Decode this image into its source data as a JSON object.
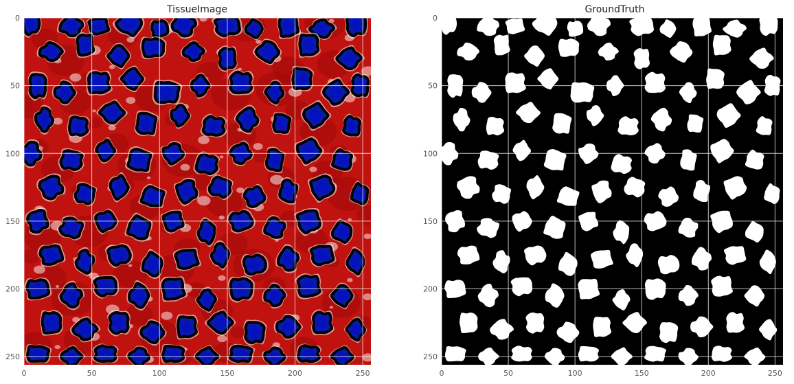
{
  "panels": [
    {
      "id": "tissue",
      "title": "TissueImage",
      "xticks": [
        "0",
        "50",
        "100",
        "150",
        "200",
        "250"
      ],
      "yticks": [
        "0",
        "50",
        "100",
        "150",
        "200",
        "250"
      ],
      "colors": {
        "background": "#c0120e",
        "background_dark": "#9e0a0a",
        "nucleus_fill": "#0a1aa8",
        "nucleus_core": "#0010c8",
        "outline": "#000000",
        "halo": "#ffffff",
        "grid": "#ffffff"
      }
    },
    {
      "id": "truth",
      "title": "GroundTruth",
      "xticks": [
        "0",
        "50",
        "100",
        "150",
        "200",
        "250"
      ],
      "yticks": [
        "0",
        "50",
        "100",
        "150",
        "200",
        "250"
      ],
      "colors": {
        "background": "#000000",
        "nucleus_fill": "#ffffff",
        "grid": "#ffffff"
      }
    }
  ],
  "image": {
    "width": 256,
    "height": 256,
    "tick_values": [
      0,
      50,
      100,
      150,
      200,
      250
    ]
  },
  "nuclei": [
    [
      5,
      4,
      6,
      8
    ],
    [
      35,
      6,
      8,
      7
    ],
    [
      55,
      6,
      7,
      6
    ],
    [
      78,
      4,
      9,
      8
    ],
    [
      100,
      8,
      6,
      6
    ],
    [
      118,
      5,
      8,
      8
    ],
    [
      150,
      6,
      9,
      7
    ],
    [
      170,
      8,
      6,
      6
    ],
    [
      195,
      6,
      7,
      8
    ],
    [
      220,
      8,
      8,
      6
    ],
    [
      245,
      5,
      7,
      8
    ],
    [
      20,
      25,
      8,
      6
    ],
    [
      45,
      20,
      6,
      8
    ],
    [
      70,
      28,
      7,
      7
    ],
    [
      95,
      22,
      8,
      7
    ],
    [
      125,
      25,
      7,
      6
    ],
    [
      150,
      30,
      6,
      8
    ],
    [
      180,
      25,
      8,
      7
    ],
    [
      210,
      20,
      7,
      8
    ],
    [
      240,
      30,
      8,
      7
    ],
    [
      10,
      50,
      6,
      9
    ],
    [
      30,
      55,
      7,
      7
    ],
    [
      55,
      48,
      8,
      8
    ],
    [
      80,
      45,
      7,
      7
    ],
    [
      105,
      55,
      9,
      8
    ],
    [
      130,
      50,
      6,
      7
    ],
    [
      160,
      48,
      8,
      8
    ],
    [
      185,
      55,
      6,
      7
    ],
    [
      205,
      45,
      7,
      8
    ],
    [
      230,
      55,
      8,
      8
    ],
    [
      248,
      50,
      6,
      8
    ],
    [
      15,
      75,
      6,
      8
    ],
    [
      40,
      80,
      7,
      7
    ],
    [
      65,
      70,
      8,
      7
    ],
    [
      90,
      78,
      7,
      8
    ],
    [
      115,
      72,
      6,
      7
    ],
    [
      140,
      80,
      8,
      7
    ],
    [
      165,
      75,
      7,
      8
    ],
    [
      190,
      78,
      6,
      7
    ],
    [
      215,
      72,
      8,
      8
    ],
    [
      242,
      80,
      6,
      7
    ],
    [
      5,
      100,
      7,
      8
    ],
    [
      35,
      105,
      8,
      7
    ],
    [
      60,
      98,
      6,
      7
    ],
    [
      85,
      105,
      8,
      8
    ],
    [
      110,
      100,
      7,
      7
    ],
    [
      135,
      108,
      8,
      7
    ],
    [
      160,
      100,
      7,
      7
    ],
    [
      185,
      105,
      6,
      8
    ],
    [
      210,
      98,
      8,
      8
    ],
    [
      235,
      105,
      7,
      7
    ],
    [
      20,
      125,
      8,
      8
    ],
    [
      45,
      130,
      7,
      7
    ],
    [
      70,
      125,
      6,
      8
    ],
    [
      95,
      132,
      8,
      7
    ],
    [
      120,
      128,
      7,
      8
    ],
    [
      145,
      125,
      8,
      7
    ],
    [
      170,
      132,
      7,
      7
    ],
    [
      195,
      128,
      6,
      8
    ],
    [
      220,
      125,
      8,
      8
    ],
    [
      248,
      130,
      6,
      7
    ],
    [
      10,
      150,
      7,
      8
    ],
    [
      35,
      155,
      8,
      7
    ],
    [
      60,
      150,
      7,
      7
    ],
    [
      85,
      155,
      8,
      8
    ],
    [
      110,
      150,
      7,
      7
    ],
    [
      135,
      158,
      6,
      8
    ],
    [
      160,
      150,
      8,
      7
    ],
    [
      185,
      155,
      7,
      7
    ],
    [
      210,
      150,
      8,
      8
    ],
    [
      235,
      158,
      7,
      7
    ],
    [
      20,
      175,
      8,
      7
    ],
    [
      45,
      180,
      6,
      8
    ],
    [
      70,
      175,
      8,
      7
    ],
    [
      95,
      182,
      7,
      8
    ],
    [
      120,
      178,
      8,
      7
    ],
    [
      145,
      175,
      6,
      8
    ],
    [
      170,
      182,
      8,
      7
    ],
    [
      195,
      178,
      7,
      8
    ],
    [
      220,
      175,
      8,
      7
    ],
    [
      245,
      180,
      6,
      8
    ],
    [
      10,
      200,
      8,
      7
    ],
    [
      35,
      205,
      7,
      8
    ],
    [
      60,
      198,
      8,
      7
    ],
    [
      85,
      205,
      7,
      8
    ],
    [
      110,
      200,
      8,
      8
    ],
    [
      135,
      208,
      6,
      7
    ],
    [
      160,
      200,
      8,
      8
    ],
    [
      185,
      205,
      7,
      7
    ],
    [
      210,
      198,
      8,
      8
    ],
    [
      235,
      205,
      7,
      7
    ],
    [
      20,
      225,
      7,
      8
    ],
    [
      45,
      230,
      8,
      7
    ],
    [
      70,
      225,
      7,
      8
    ],
    [
      95,
      232,
      8,
      7
    ],
    [
      120,
      228,
      7,
      8
    ],
    [
      145,
      225,
      8,
      7
    ],
    [
      170,
      232,
      7,
      8
    ],
    [
      195,
      228,
      8,
      7
    ],
    [
      220,
      225,
      7,
      8
    ],
    [
      245,
      230,
      6,
      7
    ],
    [
      10,
      248,
      8,
      6
    ],
    [
      35,
      250,
      7,
      6
    ],
    [
      60,
      248,
      8,
      6
    ],
    [
      85,
      250,
      7,
      6
    ],
    [
      110,
      248,
      8,
      6
    ],
    [
      135,
      250,
      7,
      6
    ],
    [
      160,
      248,
      8,
      6
    ],
    [
      185,
      250,
      7,
      6
    ],
    [
      210,
      248,
      8,
      6
    ],
    [
      235,
      250,
      7,
      6
    ]
  ]
}
